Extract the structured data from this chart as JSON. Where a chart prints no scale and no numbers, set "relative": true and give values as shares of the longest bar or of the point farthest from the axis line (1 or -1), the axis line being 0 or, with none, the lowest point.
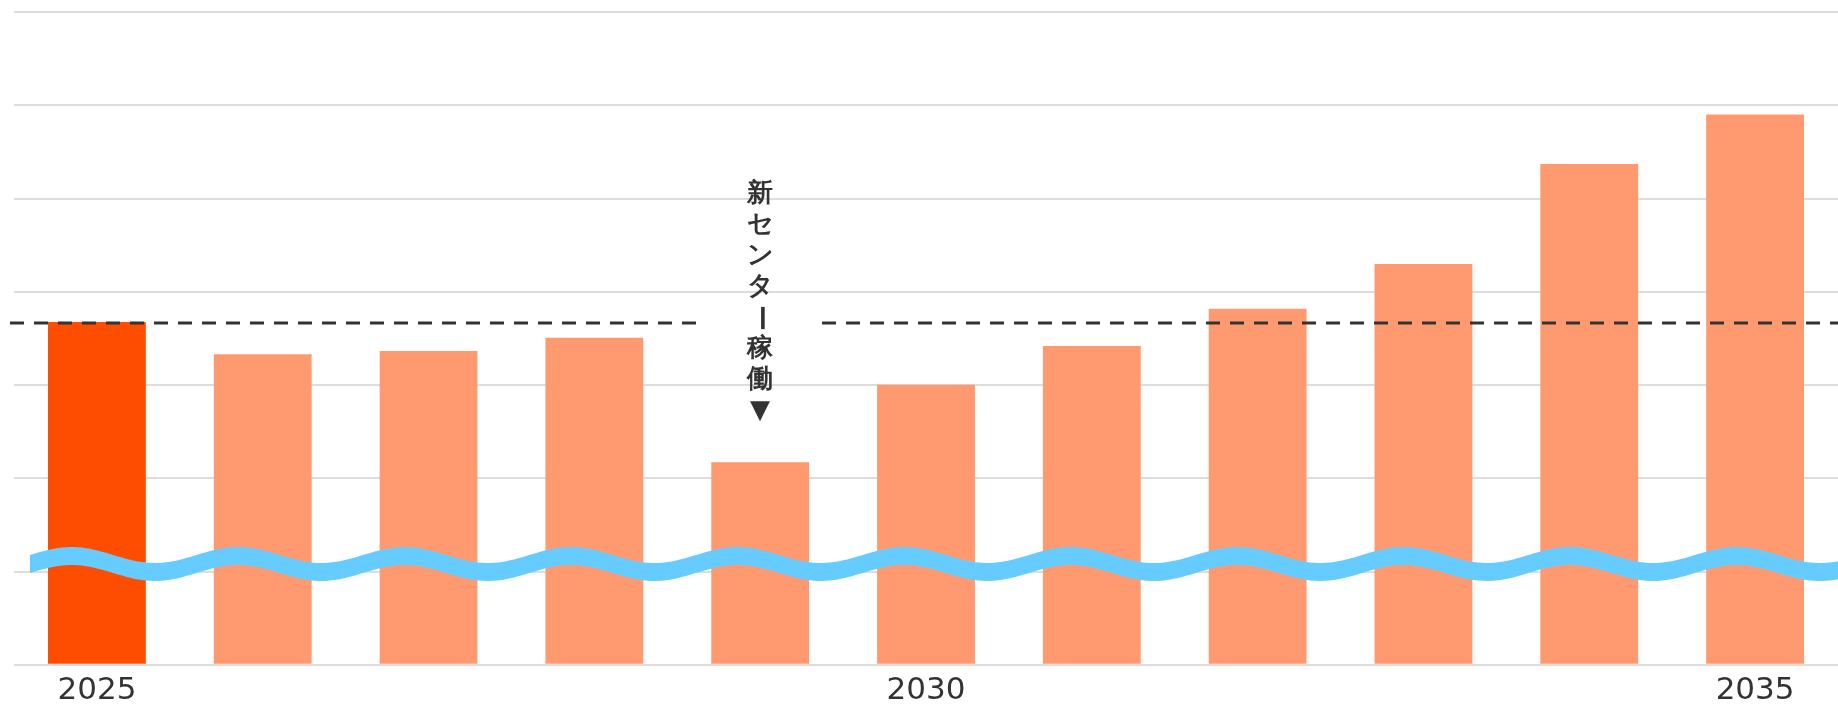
{
  "chart_data": {
    "type": "bar",
    "relative": true,
    "grid": "y",
    "legend": false,
    "categories": [
      "2025",
      null,
      null,
      null,
      null,
      "2030",
      null,
      null,
      null,
      null,
      "2035"
    ],
    "values": [
      0.623,
      0.564,
      0.57,
      0.594,
      0.368,
      0.509,
      0.579,
      0.647,
      0.728,
      0.91,
      1.0
    ],
    "colors": [
      "#ff4d00",
      "#ff9a70",
      "#ff9a70",
      "#ff9a70",
      "#ff9a70",
      "#ff9a70",
      "#ff9a70",
      "#ff9a70",
      "#ff9a70",
      "#ff9a70",
      "#ff9a70"
    ],
    "ref_lines": [
      {
        "axis": "y",
        "value": 0.621,
        "label": "新センター稼働▼",
        "line_style": "dashed",
        "color": "#333333"
      }
    ]
  }
}
